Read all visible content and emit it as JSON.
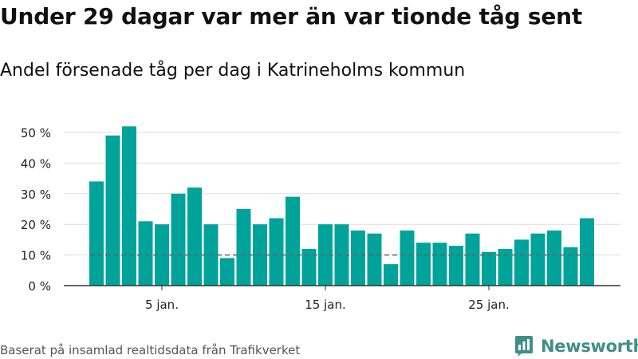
{
  "title": "Under 29 dagar var mer än var tionde tåg sent",
  "subtitle": "Andel försenade tåg per dag i Katrineholms kommun",
  "source": "Baserat på insamlad realtidsdata från Trafikverket",
  "logo": {
    "text": "Newsworthy",
    "icon": "newsworthy-logo-icon",
    "color": "#3f8f88"
  },
  "colors": {
    "bar": "#00a39a",
    "grid": "#dddddd",
    "reference_line": "#666666",
    "axis": "#333333"
  },
  "chart_data": {
    "type": "bar",
    "x": [
      1,
      2,
      3,
      4,
      5,
      6,
      7,
      8,
      9,
      10,
      11,
      12,
      13,
      14,
      15,
      16,
      17,
      18,
      19,
      20,
      21,
      22,
      23,
      24,
      25,
      26,
      27,
      28,
      29,
      30,
      31
    ],
    "values": [
      34,
      49,
      52,
      21,
      20,
      30,
      32,
      20,
      9,
      25,
      20,
      22,
      29,
      12,
      20,
      20,
      18,
      17,
      7,
      18,
      14,
      14,
      13,
      17,
      11,
      12,
      15,
      17,
      18,
      12.5,
      22
    ],
    "unit": "%",
    "ylim": [
      0,
      55
    ],
    "y_ticks": [
      0,
      10,
      20,
      30,
      40,
      50
    ],
    "y_tick_labels": [
      "0 %",
      "10 %",
      "20 %",
      "30 %",
      "40 %",
      "50 %"
    ],
    "x_ticks": [
      5,
      15,
      25
    ],
    "x_tick_labels": [
      "5 jan.",
      "15 jan.",
      "25 jan."
    ],
    "reference_line": {
      "value": 10,
      "style": "dashed"
    },
    "grid": true,
    "legend": "none"
  }
}
